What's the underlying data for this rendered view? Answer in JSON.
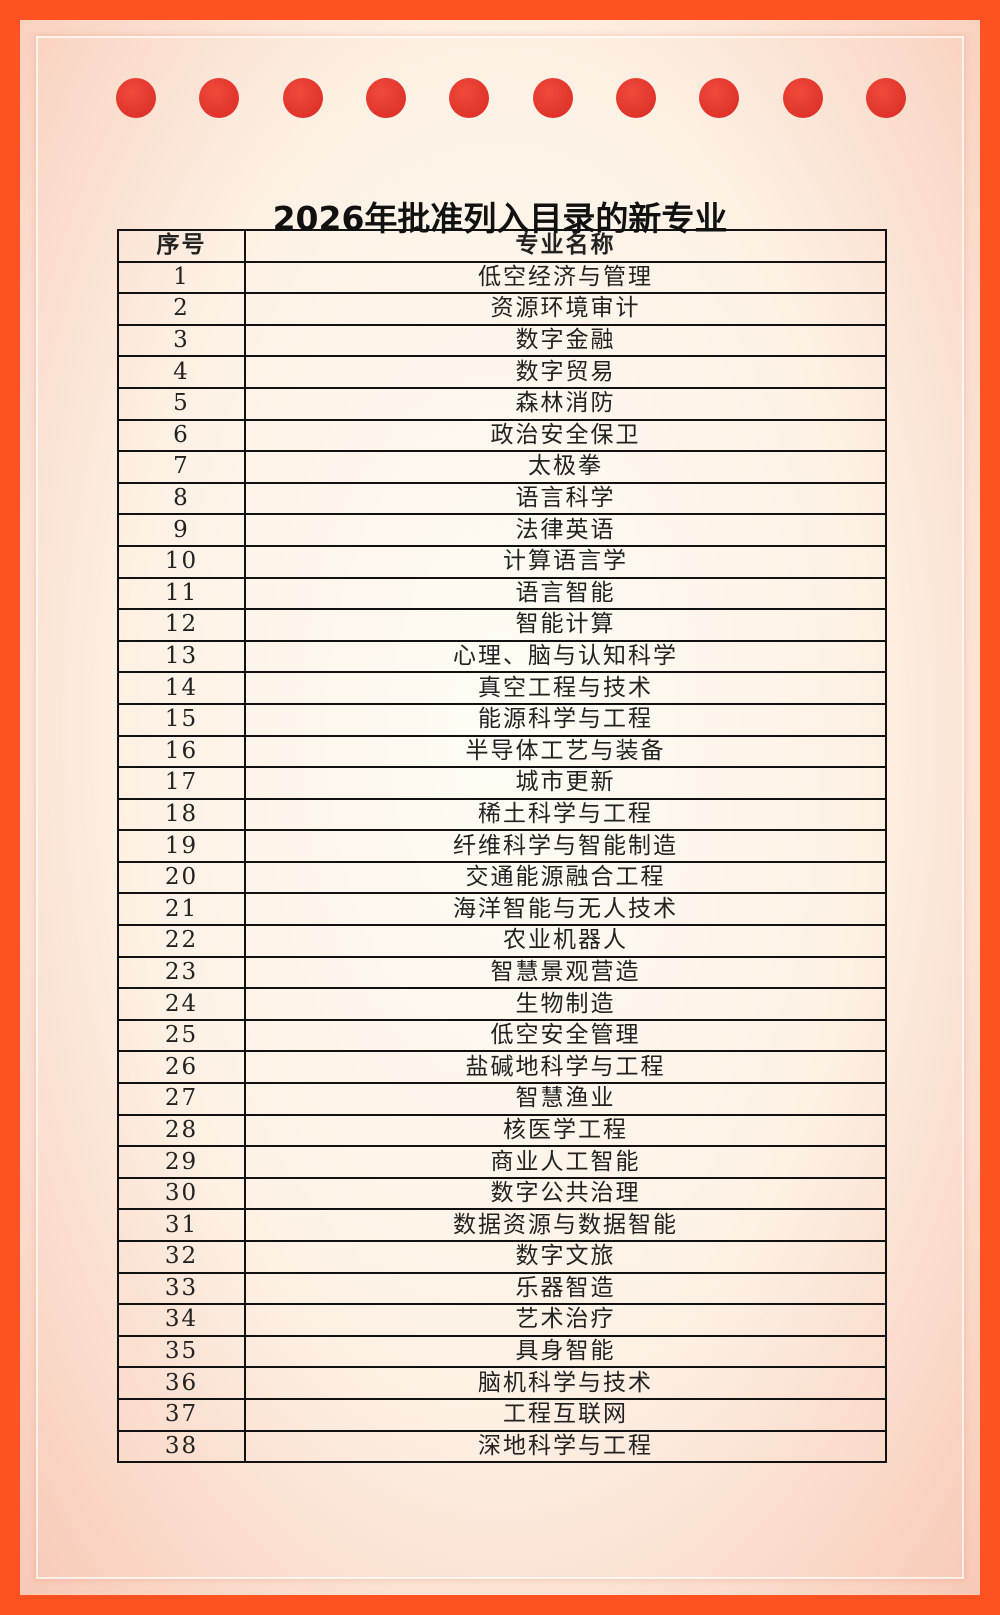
{
  "title": "2026年批准列入目录的新专业",
  "table": {
    "header": [
      "序号",
      "专业名称"
    ],
    "rows": [
      [
        "1",
        "低空经济与管理"
      ],
      [
        "2",
        "资源环境审计"
      ],
      [
        "3",
        "数字金融"
      ],
      [
        "4",
        "数字贸易"
      ],
      [
        "5",
        "森林消防"
      ],
      [
        "6",
        "政治安全保卫"
      ],
      [
        "7",
        "太极拳"
      ],
      [
        "8",
        "语言科学"
      ],
      [
        "9",
        "法律英语"
      ],
      [
        "10",
        "计算语言学"
      ],
      [
        "11",
        "语言智能"
      ],
      [
        "12",
        "智能计算"
      ],
      [
        "13",
        "心理、脑与认知科学"
      ],
      [
        "14",
        "真空工程与技术"
      ],
      [
        "15",
        "能源科学与工程"
      ],
      [
        "16",
        "半导体工艺与装备"
      ],
      [
        "17",
        "城市更新"
      ],
      [
        "18",
        "稀土科学与工程"
      ],
      [
        "19",
        "纤维科学与智能制造"
      ],
      [
        "20",
        "交通能源融合工程"
      ],
      [
        "21",
        "海洋智能与无人技术"
      ],
      [
        "22",
        "农业机器人"
      ],
      [
        "23",
        "智慧景观营造"
      ],
      [
        "24",
        "生物制造"
      ],
      [
        "25",
        "低空安全管理"
      ],
      [
        "26",
        "盐碱地科学与工程"
      ],
      [
        "27",
        "智慧渔业"
      ],
      [
        "28",
        "核医学工程"
      ],
      [
        "29",
        "商业人工智能"
      ],
      [
        "30",
        "数字公共治理"
      ],
      [
        "31",
        "数据资源与数据智能"
      ],
      [
        "32",
        "数字文旅"
      ],
      [
        "33",
        "乐器智造"
      ],
      [
        "34",
        "艺术治疗"
      ],
      [
        "35",
        "具身智能"
      ],
      [
        "36",
        "脑机科学与技术"
      ],
      [
        "37",
        "工程互联网"
      ],
      [
        "38",
        "深地科学与工程"
      ]
    ]
  }
}
